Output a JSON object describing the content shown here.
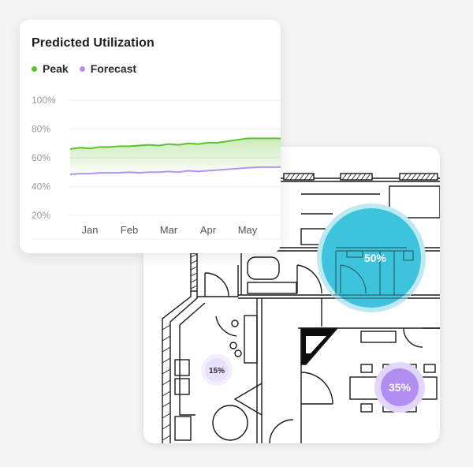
{
  "chart_data": {
    "type": "area",
    "title": "Predicted Utilization",
    "categories": [
      "Jan",
      "Feb",
      "Mar",
      "Apr",
      "May"
    ],
    "y_ticks": [
      "100%",
      "80%",
      "60%",
      "40%",
      "20%"
    ],
    "ylim": [
      0,
      100
    ],
    "grid": true,
    "legend_placement": "top-left",
    "series": [
      {
        "name": "Peak",
        "color": "#5bc22a",
        "x": [
          0,
          0.25,
          0.5,
          0.75,
          1.0,
          1.25,
          1.5,
          1.75,
          2.0,
          2.25,
          2.5,
          2.75,
          3.0,
          3.25,
          3.5,
          3.75,
          4.0,
          4.25,
          4.5,
          4.8
        ],
        "values": [
          66,
          67,
          66.5,
          67.5,
          67.5,
          68,
          68,
          68.5,
          69,
          68.5,
          69.5,
          69,
          70,
          69.5,
          70.5,
          70.5,
          71.5,
          72.5,
          73.5,
          73.5
        ]
      },
      {
        "name": "Forecast",
        "color": "#b493f0",
        "x": [
          0,
          0.25,
          0.5,
          0.75,
          1.0,
          1.25,
          1.5,
          1.75,
          2.0,
          2.25,
          2.5,
          2.75,
          3.0,
          3.25,
          3.5,
          3.75,
          4.0,
          4.25,
          4.5,
          4.8
        ],
        "values": [
          48.5,
          49,
          49,
          49.5,
          49.5,
          49.5,
          50,
          49.5,
          50,
          50,
          50.5,
          50,
          51,
          50.5,
          51,
          51.5,
          52,
          52.5,
          53,
          53.5
        ]
      }
    ]
  },
  "floorplan": {
    "zones": [
      {
        "label": "50%",
        "value": 50,
        "color": "#3dc3db",
        "halo": "#bfe9f1",
        "text_color": "#ffffff"
      },
      {
        "label": "15%",
        "value": 15,
        "color": "#e9e0fb",
        "halo": "#f4effd",
        "text_color": "#2b2b30"
      },
      {
        "label": "35%",
        "value": 35,
        "color": "#b38ef2",
        "halo": "#e3d6fb",
        "text_color": "#ffffff"
      }
    ]
  }
}
